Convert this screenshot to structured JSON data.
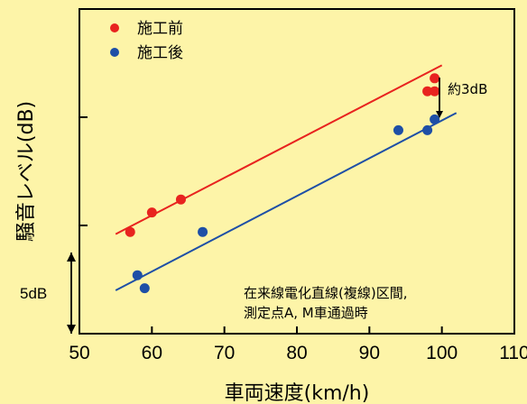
{
  "chart_data": {
    "type": "scatter",
    "xlabel": "車両速度(km/h)",
    "ylabel": "騒音レベル(dB)",
    "xlim": [
      50,
      110
    ],
    "xticks": [
      50,
      60,
      70,
      80,
      90,
      100,
      110
    ],
    "y_major_tick_step_dB": 5,
    "ylim": [
      0,
      15
    ],
    "grid": false,
    "legend_position": "top-left",
    "series": [
      {
        "name": "施工前",
        "color": "#e8231f",
        "x": [
          57,
          60,
          64,
          98,
          99,
          99
        ],
        "y": [
          4.7,
          5.6,
          6.2,
          11.2,
          11.2,
          11.8
        ],
        "fit": {
          "x": [
            55,
            100
          ],
          "y": [
            4.6,
            12.4
          ]
        }
      },
      {
        "name": "施工後",
        "color": "#1e4fa6",
        "x": [
          58,
          59,
          67,
          94,
          98,
          99
        ],
        "y": [
          2.7,
          2.1,
          4.7,
          9.4,
          9.4,
          9.9
        ],
        "fit": {
          "x": [
            55,
            102
          ],
          "y": [
            2.0,
            10.2
          ]
        }
      }
    ],
    "annotations": {
      "diff_label": "約3dB",
      "note_line1": "在来線電化直線(複線)区間,",
      "note_line2": "測定点A, M車通過時",
      "scale_label": "5dB"
    }
  }
}
